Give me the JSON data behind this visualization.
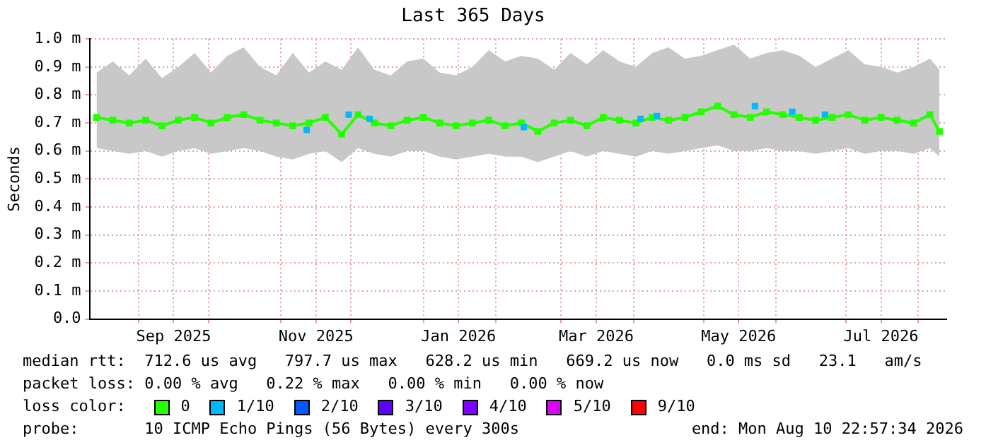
{
  "chart_data": {
    "type": "line",
    "title": "Last 365 Days",
    "ylabel": "Seconds",
    "xlim": [
      "2025-08-11",
      "2026-08-13"
    ],
    "xticks": [
      {
        "value": "2025-09-01",
        "label": null
      },
      {
        "value": "2025-09-16",
        "label": "Sep 2025"
      },
      {
        "value": "2025-10-01",
        "label": null
      },
      {
        "value": "2025-11-01",
        "label": null
      },
      {
        "value": "2025-11-16",
        "label": "Nov 2025"
      },
      {
        "value": "2025-12-01",
        "label": null
      },
      {
        "value": "2026-01-01",
        "label": null
      },
      {
        "value": "2026-01-16",
        "label": "Jan 2026"
      },
      {
        "value": "2026-02-01",
        "label": null
      },
      {
        "value": "2026-03-01",
        "label": null
      },
      {
        "value": "2026-03-16",
        "label": "Mar 2026"
      },
      {
        "value": "2026-04-01",
        "label": null
      },
      {
        "value": "2026-05-01",
        "label": null
      },
      {
        "value": "2026-05-16",
        "label": "May 2026"
      },
      {
        "value": "2026-06-01",
        "label": null
      },
      {
        "value": "2026-07-01",
        "label": null
      },
      {
        "value": "2026-07-16",
        "label": "Jul 2026"
      },
      {
        "value": "2026-08-01",
        "label": null
      }
    ],
    "ylim": [
      0,
      1
    ],
    "yticks": [
      {
        "value": 0,
        "label": "0.0"
      },
      {
        "value": 0.1,
        "label": "0.1 m"
      },
      {
        "value": 0.2,
        "label": "0.2 m"
      },
      {
        "value": 0.3,
        "label": "0.3 m"
      },
      {
        "value": 0.4,
        "label": "0.4 m"
      },
      {
        "value": 0.5,
        "label": "0.5 m"
      },
      {
        "value": 0.6,
        "label": "0.6 m"
      },
      {
        "value": 0.7,
        "label": "0.7 m"
      },
      {
        "value": 0.8,
        "label": "0.8 m"
      },
      {
        "value": 0.9,
        "label": "0.9 m"
      },
      {
        "value": 1,
        "label": "1.0 m"
      }
    ],
    "grid": true,
    "legend": "bottom",
    "legend_title": "loss color:",
    "marker": "square",
    "line_style": "solid",
    "x": [
      "2025-08-14",
      "2025-08-21",
      "2025-08-28",
      "2025-09-04",
      "2025-09-11",
      "2025-09-18",
      "2025-09-25",
      "2025-10-02",
      "2025-10-09",
      "2025-10-16",
      "2025-10-23",
      "2025-10-30",
      "2025-11-06",
      "2025-11-13",
      "2025-11-20",
      "2025-11-27",
      "2025-12-04",
      "2025-12-11",
      "2025-12-18",
      "2025-12-25",
      "2026-01-01",
      "2026-01-08",
      "2026-01-15",
      "2026-01-22",
      "2026-01-29",
      "2026-02-05",
      "2026-02-12",
      "2026-02-19",
      "2026-02-26",
      "2026-03-05",
      "2026-03-12",
      "2026-03-19",
      "2026-03-26",
      "2026-04-02",
      "2026-04-09",
      "2026-04-16",
      "2026-04-23",
      "2026-04-30",
      "2026-05-07",
      "2026-05-14",
      "2026-05-21",
      "2026-05-28",
      "2026-06-04",
      "2026-06-11",
      "2026-06-18",
      "2026-06-25",
      "2026-07-02",
      "2026-07-09",
      "2026-07-16",
      "2026-07-23",
      "2026-07-30",
      "2026-08-06",
      "2026-08-10"
    ],
    "series": [
      {
        "name": "0",
        "color": "#26ff00",
        "values": [
          0.72,
          0.71,
          0.7,
          0.71,
          0.69,
          0.71,
          0.72,
          0.7,
          0.72,
          0.73,
          0.71,
          0.7,
          0.69,
          0.7,
          0.72,
          0.66,
          0.73,
          0.7,
          0.69,
          0.71,
          0.72,
          0.7,
          0.69,
          0.7,
          0.71,
          0.69,
          0.7,
          0.67,
          0.7,
          0.71,
          0.69,
          0.72,
          0.71,
          0.7,
          0.72,
          0.71,
          0.72,
          0.74,
          0.76,
          0.73,
          0.72,
          0.74,
          0.73,
          0.72,
          0.71,
          0.72,
          0.73,
          0.71,
          0.72,
          0.71,
          0.7,
          0.73,
          0.67
        ],
        "lower": [
          0.61,
          0.6,
          0.59,
          0.6,
          0.58,
          0.6,
          0.61,
          0.59,
          0.6,
          0.61,
          0.6,
          0.58,
          0.57,
          0.59,
          0.6,
          0.56,
          0.61,
          0.59,
          0.58,
          0.6,
          0.6,
          0.58,
          0.57,
          0.58,
          0.59,
          0.58,
          0.58,
          0.56,
          0.58,
          0.6,
          0.58,
          0.6,
          0.59,
          0.58,
          0.6,
          0.59,
          0.6,
          0.61,
          0.62,
          0.6,
          0.6,
          0.61,
          0.6,
          0.6,
          0.59,
          0.6,
          0.61,
          0.59,
          0.6,
          0.6,
          0.59,
          0.61,
          0.58
        ],
        "upper": [
          0.88,
          0.92,
          0.87,
          0.93,
          0.86,
          0.9,
          0.95,
          0.88,
          0.94,
          0.97,
          0.9,
          0.87,
          0.95,
          0.88,
          0.92,
          0.89,
          0.97,
          0.89,
          0.87,
          0.92,
          0.93,
          0.88,
          0.87,
          0.9,
          0.96,
          0.92,
          0.94,
          0.93,
          0.89,
          0.95,
          0.91,
          0.96,
          0.92,
          0.9,
          0.95,
          0.97,
          0.93,
          0.94,
          0.96,
          0.98,
          0.93,
          0.95,
          0.96,
          0.94,
          0.9,
          0.93,
          0.96,
          0.91,
          0.9,
          0.88,
          0.9,
          0.93,
          0.89
        ]
      },
      {
        "name": "1/10",
        "type": "scatter",
        "color": "#00b8ff",
        "x": [
          "2025-11-12",
          "2025-11-30",
          "2025-12-09",
          "2026-02-13",
          "2026-04-04",
          "2026-04-11",
          "2026-05-23",
          "2026-06-08",
          "2026-06-22"
        ],
        "values": [
          0.675,
          0.73,
          0.715,
          0.685,
          0.715,
          0.725,
          0.76,
          0.74,
          0.73
        ]
      },
      {
        "name": "2/10",
        "type": "scatter",
        "color": "#0059ff",
        "values": [
          null,
          null,
          null,
          null,
          null,
          null,
          null,
          null,
          null,
          null,
          null,
          null,
          null,
          null,
          null,
          null,
          null,
          null,
          null,
          null,
          null,
          null,
          null,
          null,
          null,
          null,
          null,
          null,
          null,
          null,
          null,
          null,
          null,
          null,
          null,
          null,
          null,
          null,
          null,
          null,
          null,
          null,
          null,
          null,
          null,
          null,
          null,
          null,
          null,
          null,
          null,
          null,
          null
        ]
      },
      {
        "name": "3/10",
        "type": "scatter",
        "color": "#5e00ff",
        "values": [
          null,
          null,
          null,
          null,
          null,
          null,
          null,
          null,
          null,
          null,
          null,
          null,
          null,
          null,
          null,
          null,
          null,
          null,
          null,
          null,
          null,
          null,
          null,
          null,
          null,
          null,
          null,
          null,
          null,
          null,
          null,
          null,
          null,
          null,
          null,
          null,
          null,
          null,
          null,
          null,
          null,
          null,
          null,
          null,
          null,
          null,
          null,
          null,
          null,
          null,
          null,
          null,
          null
        ]
      },
      {
        "name": "4/10",
        "type": "scatter",
        "color": "#7e00ff",
        "values": [
          null,
          null,
          null,
          null,
          null,
          null,
          null,
          null,
          null,
          null,
          null,
          null,
          null,
          null,
          null,
          null,
          null,
          null,
          null,
          null,
          null,
          null,
          null,
          null,
          null,
          null,
          null,
          null,
          null,
          null,
          null,
          null,
          null,
          null,
          null,
          null,
          null,
          null,
          null,
          null,
          null,
          null,
          null,
          null,
          null,
          null,
          null,
          null,
          null,
          null,
          null,
          null,
          null
        ]
      },
      {
        "name": "5/10",
        "type": "scatter",
        "color": "#dd00ff",
        "values": [
          null,
          null,
          null,
          null,
          null,
          null,
          null,
          null,
          null,
          null,
          null,
          null,
          null,
          null,
          null,
          null,
          null,
          null,
          null,
          null,
          null,
          null,
          null,
          null,
          null,
          null,
          null,
          null,
          null,
          null,
          null,
          null,
          null,
          null,
          null,
          null,
          null,
          null,
          null,
          null,
          null,
          null,
          null,
          null,
          null,
          null,
          null,
          null,
          null,
          null,
          null,
          null,
          null
        ]
      },
      {
        "name": "9/10",
        "type": "scatter",
        "color": "#ff0000",
        "values": [
          null,
          null,
          null,
          null,
          null,
          null,
          null,
          null,
          null,
          null,
          null,
          null,
          null,
          null,
          null,
          null,
          null,
          null,
          null,
          null,
          null,
          null,
          null,
          null,
          null,
          null,
          null,
          null,
          null,
          null,
          null,
          null,
          null,
          null,
          null,
          null,
          null,
          null,
          null,
          null,
          null,
          null,
          null,
          null,
          null,
          null,
          null,
          null,
          null,
          null,
          null,
          null,
          null
        ]
      }
    ],
    "annotations": [
      "median rtt:  712.6 us avg   797.7 us max   628.2 us min   669.2 us now   0.0 ms sd   23.1   am/s",
      "packet loss: 0.00 % avg   0.22 % max   0.00 % min   0.00 % now",
      "probe:       10 ICMP Echo Pings (56 Bytes) every 300s",
      "end: Mon Aug 10 22:57:34 2026"
    ]
  }
}
